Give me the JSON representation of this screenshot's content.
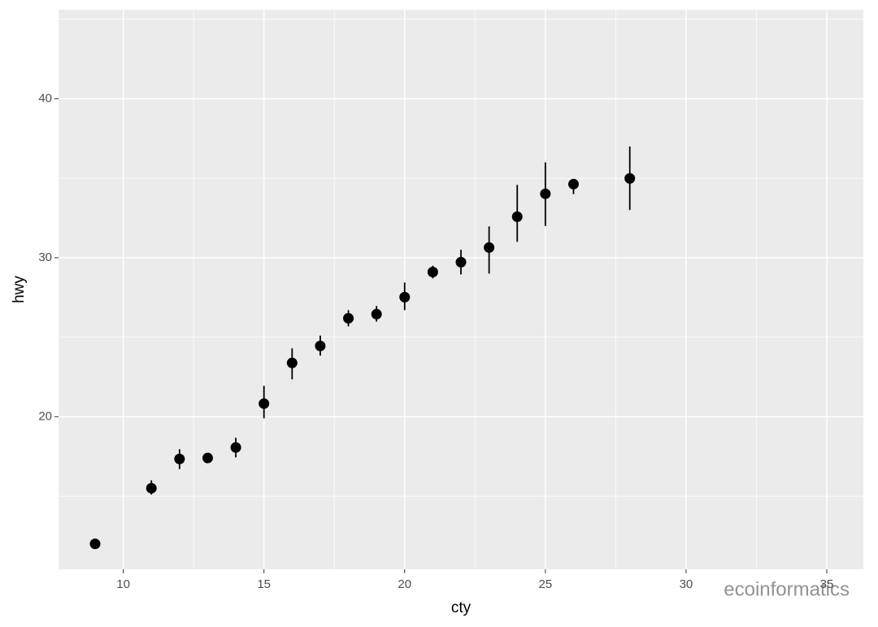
{
  "chart_data": {
    "type": "pointrange",
    "x_label": "cty",
    "y_label": "hwy",
    "x": [
      9,
      11,
      12,
      13,
      14,
      15,
      16,
      17,
      18,
      19,
      20,
      21,
      22,
      23,
      24,
      25,
      26,
      28
    ],
    "series": [
      {
        "color": "#000000",
        "values": [
          12,
          15.5,
          17.34,
          17.4,
          18.06,
          20.82,
          23.38,
          24.45,
          26.19,
          26.45,
          27.52,
          29.1,
          29.72,
          30.64,
          32.58,
          34.02,
          34.63,
          34.99
        ],
        "lower": [
          12,
          15.1,
          16.7,
          17.25,
          17.44,
          19.9,
          22.35,
          23.84,
          25.68,
          25.98,
          26.7,
          28.7,
          28.95,
          29.0,
          31.0,
          32.0,
          34.0,
          33.0
        ],
        "upper": [
          12,
          16.0,
          17.95,
          17.55,
          18.67,
          21.94,
          24.3,
          25.1,
          26.7,
          26.96,
          28.44,
          29.5,
          30.5,
          31.97,
          34.58,
          36.0,
          34.94,
          37.0
        ]
      }
    ],
    "xlim": [
      7.7,
      36.3
    ],
    "ylim": [
      10.4,
      45.6
    ],
    "xticks": [
      10,
      15,
      20,
      25,
      30,
      35
    ],
    "yticks": [
      20,
      30,
      40
    ],
    "xminor": [
      12.5,
      17.5,
      22.5,
      27.5,
      32.5
    ],
    "yminor": [
      15,
      25,
      35,
      45
    ],
    "grid": true,
    "watermark": "ecoinformatics"
  }
}
